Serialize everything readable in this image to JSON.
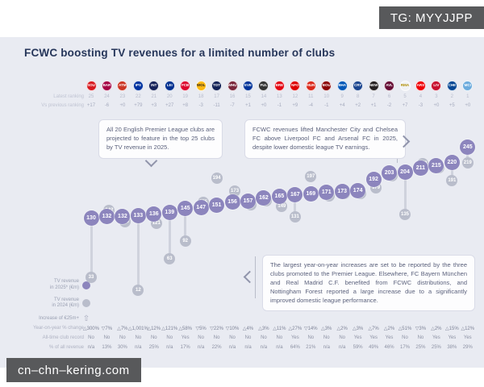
{
  "badges": {
    "tag": "TG: MYYJJPP",
    "watermark": "cn–chn–kering.com"
  },
  "header": {
    "title": "FCWC boosting TV revenues for a limited number of clubs"
  },
  "labels": {
    "latest_ranking": "Latest ranking",
    "vs_previous": "Vs previous ranking",
    "yoy": "Year-on-year % change",
    "record": "All-time club record",
    "pct_revenue": "% of all revenue"
  },
  "legend": [
    {
      "icon": "purple-dot",
      "label": "TV revenue\nin 2025* (€m)",
      "color": "#8c85bd"
    },
    {
      "icon": "grey-dot",
      "label": "TV revenue\nin 2024 (€m)",
      "color": "#b9bdcb"
    },
    {
      "icon": "up-arrow-icon",
      "label": "Increase of €25m+",
      "glyph": "⇧"
    }
  ],
  "callouts": {
    "epl": {
      "text": "All 20 English Premier League clubs are projected to feature in the top 25 clubs by TV revenue in 2025."
    },
    "fcwc": {
      "text": "FCWC revenues lifted Manchester City and Chelsea FC above Liverpool FC and Arsenal FC in 2025, despite lower domestic league TV earnings."
    },
    "increases": {
      "text": "The largest year-on-year increases are set to be reported by the three clubs promoted to the Premier League. Elsewhere, FC Bayern München and Real Madrid C.F. benefited from FCWC distributions, and Nottingham Forest reported a large increase due to a significantly improved domestic league performance."
    }
  },
  "chart_data": {
    "type": "scatter",
    "title": "FCWC boosting TV revenues for a limited number of clubs",
    "value_unit": "€m",
    "ylim": [
      0,
      260
    ],
    "grid": false,
    "legend_position": "bottom-left",
    "categories": [
      "Southampton FC",
      "FC Barcelona",
      "Atlético de Madrid",
      "Ipswich Town",
      "Inter Milan",
      "Leicester City",
      "FC Bayern München",
      "Wolverhampton Wanderers",
      "Tottenham Hotspur",
      "West Ham United",
      "Everton FC",
      "Fulham FC",
      "Brentford FC",
      "Nottingham Forest",
      "Manchester United",
      "AFC Bournemouth",
      "Brighton & Hove Albion",
      "Crystal Palace",
      "Newcastle United",
      "Aston Villa",
      "Real Madrid CF",
      "Arsenal FC",
      "Liverpool FC",
      "Chelsea FC",
      "Manchester City"
    ],
    "series": [
      {
        "name": "TV revenue in 2025* (€m)",
        "color": "#8c85bd",
        "values": [
          130,
          132,
          132,
          133,
          136,
          139,
          145,
          147,
          151,
          156,
          157,
          162,
          165,
          167,
          169,
          171,
          173,
          174,
          192,
          203,
          204,
          211,
          215,
          220,
          245
        ]
      },
      {
        "name": "TV revenue in 2024 (€m)",
        "color": "#b9bdcb",
        "values": [
          33,
          142,
          123,
          12,
          121,
          63,
          92,
          155,
          194,
          173,
          151,
          157,
          149,
          131,
          197,
          166,
          170,
          169,
          179,
          199,
          135,
          218,
          211,
          191,
          219
        ]
      }
    ],
    "increase_stick_threshold": 25,
    "latest_ranking": [
      25,
      24,
      23,
      22,
      21,
      20,
      19,
      18,
      17,
      16,
      15,
      14,
      13,
      12,
      11,
      10,
      9,
      8,
      7,
      6,
      5,
      4,
      3,
      2,
      1
    ],
    "vs_previous_ranking": [
      "+17",
      "-6",
      "+0",
      "+79",
      "+3",
      "+27",
      "+8",
      "-3",
      "-11",
      "-7",
      "+1",
      "+0",
      "-1",
      "+9",
      "-4",
      "-1",
      "+4",
      "+2",
      "+1",
      "-2",
      "+7",
      "-3",
      "+0",
      "+5",
      "+0"
    ],
    "yoy_change": [
      "△300%",
      "▽7%",
      "△7%",
      "△1,001%",
      "△12%",
      "△121%",
      "△58%",
      "▽5%",
      "▽22%",
      "▽10%",
      "△4%",
      "△3%",
      "△11%",
      "△27%",
      "▽14%",
      "△3%",
      "△2%",
      "△3%",
      "△7%",
      "△2%",
      "△51%",
      "▽3%",
      "△2%",
      "△15%",
      "△12%"
    ],
    "all_time_record": [
      "No",
      "No",
      "No",
      "No",
      "No",
      "No",
      "Yes",
      "No",
      "No",
      "No",
      "No",
      "No",
      "No",
      "Yes",
      "No",
      "No",
      "No",
      "Yes",
      "Yes",
      "Yes",
      "No",
      "No",
      "Yes",
      "Yes",
      "Yes"
    ],
    "pct_of_all_revenue": [
      "n/a",
      "13%",
      "30%",
      "n/a",
      "25%",
      "n/a",
      "17%",
      "n/a",
      "22%",
      "n/a",
      "n/a",
      "n/a",
      "n/a",
      "64%",
      "21%",
      "n/a",
      "n/a",
      "59%",
      "49%",
      "46%",
      "17%",
      "25%",
      "25%",
      "38%",
      "29%"
    ],
    "clubs": [
      {
        "id": "southampton",
        "abbr": "SOU",
        "color": "#d71920"
      },
      {
        "id": "barcelona",
        "abbr": "BAR",
        "color": "#a50044"
      },
      {
        "id": "atletico-madrid",
        "abbr": "ATM",
        "color": "#cb3524"
      },
      {
        "id": "ipswich-town",
        "abbr": "IPS",
        "color": "#0033a0"
      },
      {
        "id": "inter-milan",
        "abbr": "INT",
        "color": "#16225a"
      },
      {
        "id": "leicester-city",
        "abbr": "LEI",
        "color": "#003090"
      },
      {
        "id": "bayern-munchen",
        "abbr": "FCB",
        "color": "#dc052d"
      },
      {
        "id": "wolves",
        "abbr": "WOL",
        "color": "#fdb913",
        "text": "#231f20"
      },
      {
        "id": "tottenham",
        "abbr": "TOT",
        "color": "#132257"
      },
      {
        "id": "west-ham",
        "abbr": "WHU",
        "color": "#7a263a"
      },
      {
        "id": "everton",
        "abbr": "EVE",
        "color": "#003399"
      },
      {
        "id": "fulham",
        "abbr": "FUL",
        "color": "#333333"
      },
      {
        "id": "brentford",
        "abbr": "BRE",
        "color": "#e30613"
      },
      {
        "id": "nottingham-forest",
        "abbr": "NFO",
        "color": "#dd0000"
      },
      {
        "id": "man-united",
        "abbr": "MUN",
        "color": "#da291c"
      },
      {
        "id": "bournemouth",
        "abbr": "BOU",
        "color": "#8b0304"
      },
      {
        "id": "brighton",
        "abbr": "BHA",
        "color": "#0057b8"
      },
      {
        "id": "crystal-palace",
        "abbr": "CRY",
        "color": "#1b458f"
      },
      {
        "id": "newcastle",
        "abbr": "NEW",
        "color": "#241f20"
      },
      {
        "id": "aston-villa",
        "abbr": "AVL",
        "color": "#670e36"
      },
      {
        "id": "real-madrid",
        "abbr": "RMA",
        "color": "#f1f2f4",
        "text": "#b08d00"
      },
      {
        "id": "arsenal",
        "abbr": "ARS",
        "color": "#ef0107"
      },
      {
        "id": "liverpool",
        "abbr": "LIV",
        "color": "#c8102e"
      },
      {
        "id": "chelsea",
        "abbr": "CHE",
        "color": "#034694"
      },
      {
        "id": "man-city",
        "abbr": "MCI",
        "color": "#6cabdd"
      }
    ]
  }
}
